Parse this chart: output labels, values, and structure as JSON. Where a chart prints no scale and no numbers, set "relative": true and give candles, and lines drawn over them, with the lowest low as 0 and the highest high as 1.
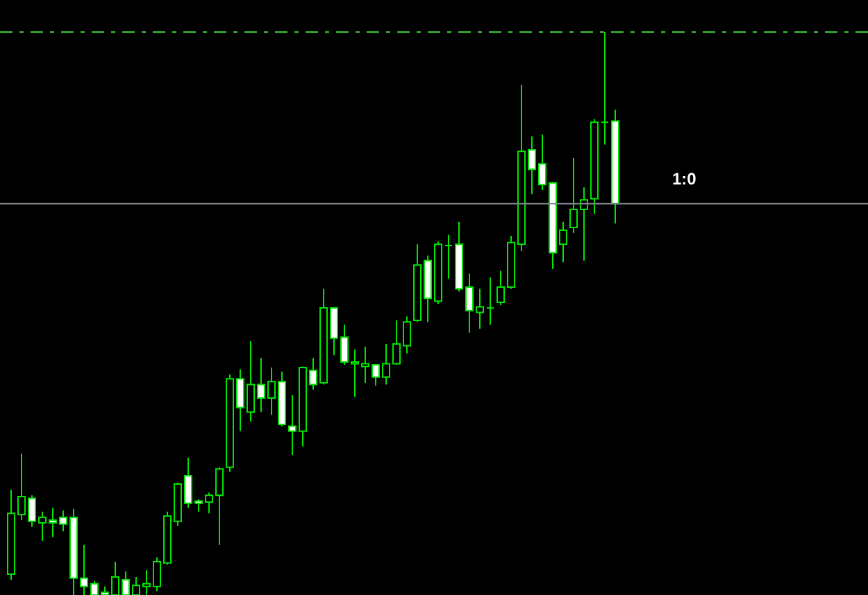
{
  "chart_data": {
    "type": "candlestick",
    "relative": true,
    "categories": [
      null,
      null,
      null,
      null,
      null,
      null,
      null,
      null,
      null,
      null,
      null,
      null,
      null,
      null,
      null,
      null,
      null,
      null,
      null,
      null,
      null,
      null,
      null,
      null,
      null,
      null,
      null,
      null,
      null,
      null,
      null,
      null,
      null,
      null,
      null,
      null,
      null,
      null,
      null,
      null,
      null,
      null,
      null,
      null,
      null,
      null,
      null,
      null,
      null,
      null,
      null,
      null,
      null,
      null,
      null,
      null,
      null,
      null,
      null
    ],
    "ohlc": [
      [
        0.037,
        0.187,
        0.027,
        0.145
      ],
      [
        0.143,
        0.251,
        0.133,
        0.175
      ],
      [
        0.172,
        0.177,
        0.121,
        0.131
      ],
      [
        0.128,
        0.148,
        0.096,
        0.138
      ],
      [
        0.133,
        0.155,
        0.103,
        0.128
      ],
      [
        0.138,
        0.15,
        0.113,
        0.126
      ],
      [
        0.138,
        0.153,
        0,
        0.03
      ],
      [
        0.03,
        0.089,
        0,
        0.015
      ],
      [
        0.02,
        0.025,
        0,
        0
      ],
      [
        0.005,
        0.015,
        0,
        0
      ],
      [
        0,
        0.059,
        0,
        0.032
      ],
      [
        0.027,
        0.042,
        0,
        0
      ],
      [
        0,
        0.032,
        0,
        0.017
      ],
      [
        0.015,
        0.044,
        0,
        0.02
      ],
      [
        0.015,
        0.067,
        0.007,
        0.059
      ],
      [
        0.057,
        0.148,
        0.054,
        0.14
      ],
      [
        0.131,
        0.2,
        0.123,
        0.197
      ],
      [
        0.212,
        0.244,
        0.155,
        0.163
      ],
      [
        0.167,
        0.17,
        0.148,
        0.163
      ],
      [
        0.165,
        0.182,
        0.145,
        0.177
      ],
      [
        0.177,
        0.227,
        0.089,
        0.224
      ],
      [
        0.227,
        0.392,
        0.219,
        0.384
      ],
      [
        0.384,
        0.401,
        0.291,
        0.333
      ],
      [
        0.325,
        0.451,
        0.308,
        0.374
      ],
      [
        0.374,
        0.421,
        0.325,
        0.35
      ],
      [
        0.35,
        0.404,
        0.32,
        0.379
      ],
      [
        0.379,
        0.397,
        0.3,
        0.303
      ],
      [
        0.3,
        0.355,
        0.249,
        0.291
      ],
      [
        0.291,
        0.406,
        0.264,
        0.404
      ],
      [
        0.399,
        0.421,
        0.365,
        0.374
      ],
      [
        0.377,
        0.544,
        0.374,
        0.51
      ],
      [
        0.51,
        0.512,
        0.426,
        0.456
      ],
      [
        0.458,
        0.48,
        0.409,
        0.414
      ],
      [
        0.411,
        0.436,
        0.352,
        0.414
      ],
      [
        0.406,
        0.441,
        0.377,
        0.411
      ],
      [
        0.409,
        0.409,
        0.372,
        0.387
      ],
      [
        0.387,
        0.446,
        0.374,
        0.411
      ],
      [
        0.411,
        0.488,
        0.409,
        0.446
      ],
      [
        0.443,
        0.495,
        0.429,
        0.485
      ],
      [
        0.488,
        0.623,
        0.485,
        0.586
      ],
      [
        0.594,
        0.603,
        0.485,
        0.527
      ],
      [
        0.522,
        0.628,
        0.517,
        0.623
      ],
      [
        0.621,
        0.64,
        0.562,
        0.621
      ],
      [
        0.623,
        0.663,
        0.539,
        0.544
      ],
      [
        0.547,
        0.571,
        0.466,
        0.505
      ],
      [
        0.502,
        0.544,
        0.473,
        0.512
      ],
      [
        0.51,
        0.564,
        0.48,
        0.51
      ],
      [
        0.52,
        0.576,
        0.515,
        0.547
      ],
      [
        0.547,
        0.638,
        0.544,
        0.626
      ],
      [
        0.623,
        0.906,
        0.611,
        0.788
      ],
      [
        0.791,
        0.815,
        0.712,
        0.756
      ],
      [
        0.766,
        0.818,
        0.719,
        0.729
      ],
      [
        0.732,
        0.734,
        0.579,
        0.608
      ],
      [
        0.623,
        0.663,
        0.591,
        0.648
      ],
      [
        0.653,
        0.776,
        0.643,
        0.685
      ],
      [
        0.685,
        0.724,
        0.594,
        0.702
      ],
      [
        0.704,
        0.845,
        0.677,
        0.84
      ],
      [
        0.84,
        1,
        0.8,
        0.84
      ],
      [
        0.842,
        0.862,
        0.66,
        0.695
      ]
    ],
    "ref_lines": [
      {
        "axis": "y",
        "value": 1,
        "color": "#44dd44",
        "line_style": "dashed"
      },
      {
        "axis": "y",
        "value": 0.695,
        "label": "1:0",
        "color": "#80868c"
      }
    ]
  }
}
